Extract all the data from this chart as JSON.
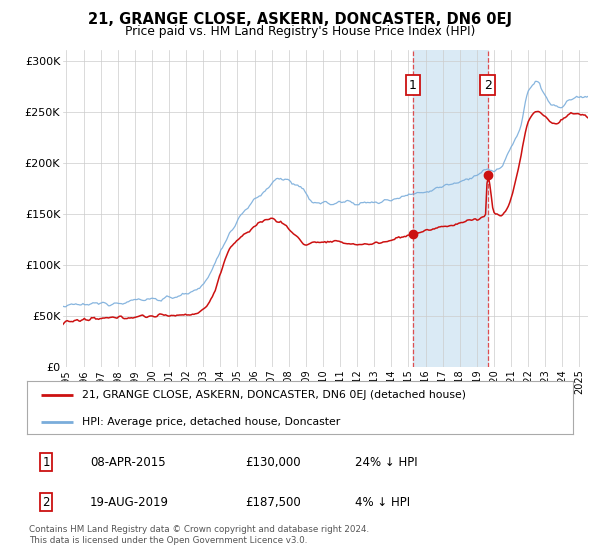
{
  "title": "21, GRANGE CLOSE, ASKERN, DONCASTER, DN6 0EJ",
  "subtitle": "Price paid vs. HM Land Registry's House Price Index (HPI)",
  "hpi_color": "#7aaddb",
  "price_color": "#cc1111",
  "point1_date_num": 2015.27,
  "point1_price": 130000,
  "point2_date_num": 2019.63,
  "point2_price": 187500,
  "highlight_color": "#daeaf5",
  "vline_color": "#dd3333",
  "legend1": "21, GRANGE CLOSE, ASKERN, DONCASTER, DN6 0EJ (detached house)",
  "legend2": "HPI: Average price, detached house, Doncaster",
  "table_row1": [
    "1",
    "08-APR-2015",
    "£130,000",
    "24% ↓ HPI"
  ],
  "table_row2": [
    "2",
    "19-AUG-2019",
    "£187,500",
    "4% ↓ HPI"
  ],
  "footer": "Contains HM Land Registry data © Crown copyright and database right 2024.\nThis data is licensed under the Open Government Licence v3.0.",
  "ylim": [
    0,
    310000
  ],
  "xlim_start": 1994.8,
  "xlim_end": 2025.5,
  "yticks": [
    0,
    50000,
    100000,
    150000,
    200000,
    250000,
    300000
  ],
  "ytick_labels": [
    "£0",
    "£50K",
    "£100K",
    "£150K",
    "£200K",
    "£250K",
    "£300K"
  ],
  "xticks": [
    1995,
    1996,
    1997,
    1998,
    1999,
    2000,
    2001,
    2002,
    2003,
    2004,
    2005,
    2006,
    2007,
    2008,
    2009,
    2010,
    2011,
    2012,
    2013,
    2014,
    2015,
    2016,
    2017,
    2018,
    2019,
    2020,
    2021,
    2022,
    2023,
    2024,
    2025
  ],
  "background_color": "#ffffff",
  "grid_color": "#cccccc",
  "hpi_key_years": [
    1994.8,
    1995.5,
    1997,
    1999,
    2001,
    2002.5,
    2003.5,
    2004.5,
    2005.5,
    2006.5,
    2007.5,
    2008.5,
    2009.5,
    2010.5,
    2011.5,
    2012.5,
    2013.5,
    2014.5,
    2015.5,
    2016.0,
    2016.5,
    2017.0,
    2017.5,
    2018.0,
    2018.5,
    2019.0,
    2019.5,
    2020.0,
    2020.5,
    2021.0,
    2021.5,
    2022.0,
    2022.5,
    2023.0,
    2023.5,
    2024.0,
    2024.5,
    2025.5
  ],
  "hpi_key_vals": [
    59000,
    60000,
    62000,
    65000,
    68000,
    73000,
    95000,
    130000,
    155000,
    170000,
    185000,
    177000,
    162000,
    160000,
    162000,
    160000,
    162000,
    167000,
    170000,
    172000,
    174000,
    177000,
    180000,
    182000,
    185000,
    188000,
    192000,
    192000,
    198000,
    215000,
    230000,
    270000,
    280000,
    265000,
    255000,
    255000,
    262000,
    265000
  ],
  "prop_key_years": [
    1994.8,
    1995.5,
    1997,
    1999,
    2001,
    2002.5,
    2003.0,
    2003.5,
    2004.0,
    2004.5,
    2005.5,
    2006.0,
    2006.5,
    2007.0,
    2007.5,
    2008.0,
    2008.5,
    2009.0,
    2009.5,
    2010.5,
    2011.0,
    2012.0,
    2012.5,
    2013.0,
    2013.5,
    2014.0,
    2014.5,
    2015.0,
    2015.27,
    2015.5,
    2016.0,
    2016.5,
    2017.0,
    2017.5,
    2018.0,
    2018.5,
    2019.0,
    2019.5,
    2019.63,
    2020.0,
    2020.3,
    2020.6,
    2021.0,
    2021.5,
    2022.0,
    2022.5,
    2023.0,
    2023.5,
    2024.0,
    2024.5,
    2025.5
  ],
  "prop_key_vals": [
    44000,
    45000,
    47000,
    49000,
    50500,
    52000,
    56000,
    68000,
    90000,
    115000,
    130000,
    138000,
    143000,
    145000,
    142000,
    135000,
    127000,
    120000,
    122000,
    122000,
    122000,
    120000,
    120000,
    121000,
    122000,
    124000,
    127000,
    129000,
    130000,
    131000,
    133000,
    135000,
    137000,
    139000,
    141000,
    143000,
    145000,
    148000,
    187500,
    152000,
    148000,
    151000,
    165000,
    200000,
    240000,
    250000,
    245000,
    238000,
    242000,
    248000,
    245000
  ]
}
